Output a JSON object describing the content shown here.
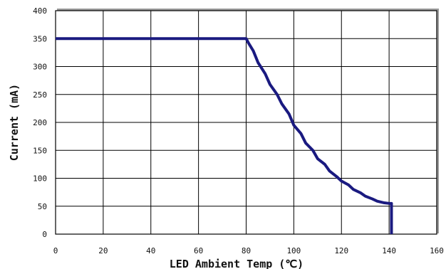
{
  "chart_data": {
    "type": "line",
    "title": "",
    "xlabel": "LED Ambient Temp (℃)",
    "ylabel": "Current (mA)",
    "xlim": [
      0,
      160
    ],
    "ylim": [
      0,
      400
    ],
    "x_ticks": [
      "0",
      "20",
      "40",
      "60",
      "80",
      "100",
      "120",
      "140",
      "160"
    ],
    "y_ticks": [
      "0",
      "50",
      "100",
      "150",
      "200",
      "250",
      "300",
      "350",
      "400"
    ],
    "grid": true,
    "legend": "none",
    "series": [
      {
        "color": "#1a1a80",
        "x": [
          0,
          80,
          81,
          83,
          85,
          88,
          90,
          93,
          95,
          98,
          100,
          103,
          105,
          108,
          110,
          113,
          115,
          118,
          120,
          123,
          125,
          128,
          130,
          133,
          135,
          138,
          140,
          140.5,
          141,
          141
        ],
        "y": [
          350,
          350,
          342,
          328,
          307,
          287,
          268,
          250,
          233,
          215,
          195,
          180,
          163,
          150,
          135,
          125,
          113,
          103,
          95,
          88,
          80,
          74,
          68,
          63,
          59,
          56,
          55,
          55,
          55,
          0
        ]
      }
    ]
  }
}
